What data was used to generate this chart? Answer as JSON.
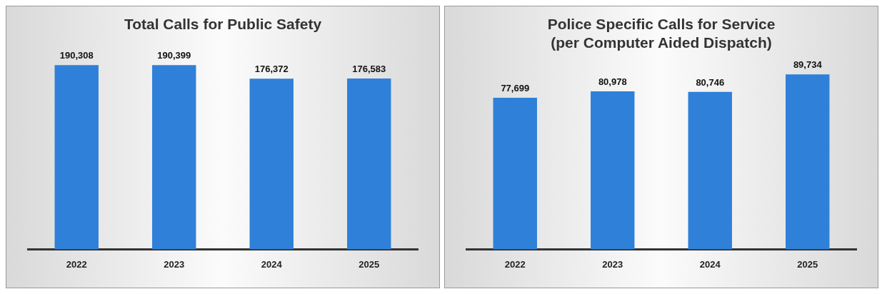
{
  "chart_data": [
    {
      "type": "bar",
      "title": "Total Calls for Public Safety",
      "categories": [
        "2022",
        "2023",
        "2024",
        "2025"
      ],
      "values": [
        190308,
        190399,
        176372,
        176583
      ],
      "value_labels": [
        "190,308",
        "190,399",
        "176,372",
        "176,583"
      ],
      "color": "#2f80d8",
      "tick_labels": "x",
      "grid": false,
      "legend": false
    },
    {
      "type": "bar",
      "title": [
        "Police Specific Calls for Service",
        "(per Computer Aided Dispatch)"
      ],
      "categories": [
        "2022",
        "2023",
        "2024",
        "2025"
      ],
      "values": [
        77699,
        80978,
        80746,
        89734
      ],
      "value_labels": [
        "77,699",
        "80,978",
        "80,746",
        "89,734"
      ],
      "color": "#2f80d8",
      "tick_labels": "x",
      "grid": false,
      "legend": false
    }
  ]
}
